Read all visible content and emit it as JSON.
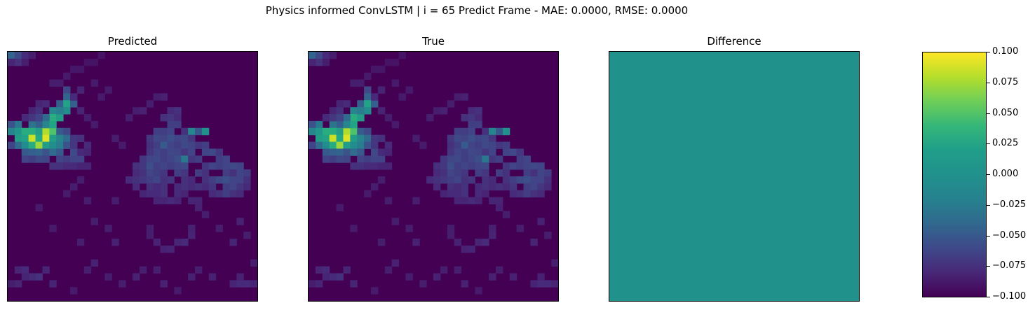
{
  "figure": {
    "title": "Physics informed ConvLSTM | i = 65 Predict Frame - MAE: 0.0000, RMSE: 0.0000"
  },
  "chart_data": [
    {
      "type": "heatmap",
      "title": "Predicted",
      "grid": [
        36,
        36
      ],
      "colormap": "viridis",
      "xticks": [],
      "yticks": [],
      "vmin": 0.0,
      "vmax": 1.0,
      "cells": [
        [
          0,
          0,
          0.32
        ],
        [
          1,
          0,
          0.22
        ],
        [
          2,
          0,
          0.12
        ],
        [
          1,
          1,
          0.14
        ],
        [
          0,
          1,
          0.1
        ],
        [
          3,
          0,
          0.08
        ],
        [
          2,
          1,
          0.08
        ],
        [
          6,
          4,
          0.08
        ],
        [
          7,
          4,
          0.08
        ],
        [
          8,
          3,
          0.07
        ],
        [
          9,
          2,
          0.06
        ],
        [
          10,
          2,
          0.06
        ],
        [
          11,
          1,
          0.05
        ],
        [
          12,
          1,
          0.05
        ],
        [
          13,
          0,
          0.05
        ],
        [
          8,
          5,
          0.22
        ],
        [
          8,
          6,
          0.32
        ],
        [
          7,
          7,
          0.3
        ],
        [
          6,
          8,
          0.45
        ],
        [
          6,
          9,
          0.62
        ],
        [
          7,
          9,
          0.55
        ],
        [
          8,
          7,
          0.58
        ],
        [
          8,
          8,
          0.48
        ],
        [
          7,
          8,
          0.42
        ],
        [
          9,
          7,
          0.3
        ],
        [
          5,
          9,
          0.35
        ],
        [
          4,
          10,
          0.3
        ],
        [
          3,
          10,
          0.38
        ],
        [
          1,
          10,
          0.4
        ],
        [
          0,
          10,
          0.25
        ],
        [
          0,
          11,
          0.45
        ],
        [
          1,
          11,
          0.52
        ],
        [
          2,
          11,
          0.62
        ],
        [
          3,
          11,
          0.62
        ],
        [
          4,
          11,
          0.55
        ],
        [
          5,
          11,
          0.88
        ],
        [
          6,
          11,
          0.72
        ],
        [
          7,
          11,
          0.28
        ],
        [
          8,
          11,
          0.22
        ],
        [
          5,
          10,
          0.45
        ],
        [
          6,
          10,
          0.58
        ],
        [
          1,
          12,
          0.55
        ],
        [
          2,
          12,
          0.58
        ],
        [
          3,
          12,
          0.92
        ],
        [
          4,
          12,
          0.6
        ],
        [
          5,
          12,
          0.95
        ],
        [
          6,
          12,
          0.55
        ],
        [
          7,
          12,
          0.45
        ],
        [
          8,
          12,
          0.35
        ],
        [
          1,
          13,
          0.35
        ],
        [
          2,
          13,
          0.48
        ],
        [
          3,
          13,
          0.62
        ],
        [
          4,
          13,
          0.85
        ],
        [
          5,
          13,
          0.55
        ],
        [
          6,
          13,
          0.48
        ],
        [
          7,
          13,
          0.42
        ],
        [
          8,
          13,
          0.25
        ],
        [
          0,
          13,
          0.2
        ],
        [
          2,
          14,
          0.28
        ],
        [
          3,
          14,
          0.3
        ],
        [
          4,
          14,
          0.32
        ],
        [
          5,
          14,
          0.25
        ],
        [
          6,
          14,
          0.35
        ],
        [
          7,
          14,
          0.28
        ],
        [
          9,
          14,
          0.22
        ],
        [
          2,
          15,
          0.2
        ],
        [
          3,
          15,
          0.18
        ],
        [
          4,
          15,
          0.22
        ],
        [
          5,
          15,
          0.2
        ],
        [
          7,
          15,
          0.2
        ],
        [
          8,
          15,
          0.18
        ],
        [
          9,
          15,
          0.2
        ],
        [
          10,
          15,
          0.2
        ],
        [
          6,
          16,
          0.14
        ],
        [
          7,
          16,
          0.14
        ],
        [
          8,
          16,
          0.12
        ],
        [
          9,
          16,
          0.12
        ],
        [
          10,
          16,
          0.1
        ],
        [
          11,
          16,
          0.1
        ],
        [
          9,
          12,
          0.16
        ],
        [
          10,
          12,
          0.14
        ],
        [
          9,
          13,
          0.16
        ],
        [
          11,
          13,
          0.12
        ],
        [
          10,
          14,
          0.12
        ],
        [
          11,
          14,
          0.1
        ],
        [
          4,
          7,
          0.1
        ],
        [
          5,
          7,
          0.12
        ],
        [
          3,
          8,
          0.1
        ],
        [
          4,
          8,
          0.14
        ],
        [
          2,
          9,
          0.12
        ],
        [
          3,
          9,
          0.16
        ],
        [
          4,
          9,
          0.2
        ],
        [
          10,
          5,
          0.1
        ],
        [
          9,
          6,
          0.12
        ],
        [
          10,
          8,
          0.1
        ],
        [
          23,
          8,
          0.12
        ],
        [
          24,
          8,
          0.14
        ],
        [
          22,
          9,
          0.14
        ],
        [
          23,
          9,
          0.16
        ],
        [
          24,
          9,
          0.12
        ],
        [
          23,
          10,
          0.18
        ],
        [
          24,
          10,
          0.18
        ],
        [
          21,
          11,
          0.18
        ],
        [
          22,
          11,
          0.18
        ],
        [
          23,
          11,
          0.2
        ],
        [
          25,
          11,
          0.14
        ],
        [
          26,
          11,
          0.45
        ],
        [
          27,
          11,
          0.28
        ],
        [
          28,
          11,
          0.5
        ],
        [
          20,
          12,
          0.16
        ],
        [
          21,
          12,
          0.22
        ],
        [
          22,
          12,
          0.2
        ],
        [
          23,
          12,
          0.24
        ],
        [
          24,
          12,
          0.2
        ],
        [
          25,
          12,
          0.22
        ],
        [
          26,
          12,
          0.16
        ],
        [
          20,
          13,
          0.14
        ],
        [
          21,
          13,
          0.18
        ],
        [
          22,
          13,
          0.28
        ],
        [
          23,
          13,
          0.2
        ],
        [
          24,
          13,
          0.18
        ],
        [
          25,
          13,
          0.22
        ],
        [
          26,
          13,
          0.2
        ],
        [
          27,
          13,
          0.16
        ],
        [
          28,
          13,
          0.18
        ],
        [
          20,
          14,
          0.16
        ],
        [
          21,
          14,
          0.2
        ],
        [
          22,
          14,
          0.18
        ],
        [
          23,
          14,
          0.22
        ],
        [
          24,
          14,
          0.2
        ],
        [
          25,
          14,
          0.16
        ],
        [
          26,
          14,
          0.2
        ],
        [
          28,
          14,
          0.2
        ],
        [
          29,
          14,
          0.22
        ],
        [
          30,
          14,
          0.16
        ],
        [
          19,
          15,
          0.16
        ],
        [
          20,
          15,
          0.2
        ],
        [
          21,
          15,
          0.22
        ],
        [
          22,
          15,
          0.18
        ],
        [
          23,
          15,
          0.2
        ],
        [
          24,
          15,
          0.24
        ],
        [
          25,
          15,
          0.4
        ],
        [
          26,
          15,
          0.16
        ],
        [
          27,
          15,
          0.18
        ],
        [
          30,
          15,
          0.18
        ],
        [
          31,
          15,
          0.2
        ],
        [
          18,
          16,
          0.14
        ],
        [
          19,
          16,
          0.16
        ],
        [
          20,
          16,
          0.24
        ],
        [
          21,
          16,
          0.18
        ],
        [
          22,
          16,
          0.2
        ],
        [
          23,
          16,
          0.18
        ],
        [
          24,
          16,
          0.2
        ],
        [
          25,
          16,
          0.22
        ],
        [
          28,
          16,
          0.16
        ],
        [
          29,
          16,
          0.2
        ],
        [
          30,
          16,
          0.18
        ],
        [
          31,
          16,
          0.2
        ],
        [
          32,
          16,
          0.22
        ],
        [
          33,
          16,
          0.2
        ],
        [
          18,
          17,
          0.12
        ],
        [
          19,
          17,
          0.14
        ],
        [
          20,
          17,
          0.2
        ],
        [
          21,
          17,
          0.18
        ],
        [
          22,
          17,
          0.16
        ],
        [
          24,
          17,
          0.18
        ],
        [
          25,
          17,
          0.16
        ],
        [
          27,
          17,
          0.18
        ],
        [
          28,
          17,
          0.14
        ],
        [
          31,
          17,
          0.18
        ],
        [
          32,
          17,
          0.14
        ],
        [
          33,
          17,
          0.2
        ],
        [
          34,
          17,
          0.18
        ],
        [
          17,
          18,
          0.12
        ],
        [
          18,
          18,
          0.14
        ],
        [
          19,
          18,
          0.16
        ],
        [
          20,
          18,
          0.18
        ],
        [
          21,
          18,
          0.2
        ],
        [
          22,
          18,
          0.14
        ],
        [
          23,
          18,
          0.16
        ],
        [
          25,
          18,
          0.14
        ],
        [
          26,
          18,
          0.12
        ],
        [
          28,
          18,
          0.14
        ],
        [
          29,
          18,
          0.18
        ],
        [
          30,
          18,
          0.22
        ],
        [
          31,
          18,
          0.24
        ],
        [
          32,
          18,
          0.2
        ],
        [
          33,
          18,
          0.2
        ],
        [
          34,
          18,
          0.14
        ],
        [
          18,
          19,
          0.12
        ],
        [
          20,
          19,
          0.14
        ],
        [
          21,
          19,
          0.12
        ],
        [
          22,
          19,
          0.14
        ],
        [
          24,
          19,
          0.12
        ],
        [
          25,
          19,
          0.14
        ],
        [
          26,
          19,
          0.12
        ],
        [
          27,
          19,
          0.14
        ],
        [
          28,
          19,
          0.12
        ],
        [
          29,
          19,
          0.16
        ],
        [
          31,
          19,
          0.18
        ],
        [
          32,
          19,
          0.2
        ],
        [
          33,
          19,
          0.16
        ],
        [
          34,
          19,
          0.12
        ],
        [
          19,
          20,
          0.1
        ],
        [
          20,
          20,
          0.12
        ],
        [
          21,
          20,
          0.12
        ],
        [
          22,
          20,
          0.14
        ],
        [
          24,
          20,
          0.12
        ],
        [
          25,
          20,
          0.1
        ],
        [
          29,
          20,
          0.12
        ],
        [
          30,
          20,
          0.14
        ],
        [
          31,
          20,
          0.18
        ],
        [
          32,
          20,
          0.14
        ],
        [
          33,
          20,
          0.12
        ],
        [
          15,
          21,
          0.08
        ],
        [
          21,
          21,
          0.1
        ],
        [
          22,
          21,
          0.1
        ],
        [
          23,
          21,
          0.12
        ],
        [
          24,
          21,
          0.1
        ],
        [
          26,
          21,
          0.1
        ],
        [
          27,
          21,
          0.1
        ],
        [
          17,
          9,
          0.08
        ],
        [
          18,
          8,
          0.08
        ],
        [
          19,
          8,
          0.09
        ],
        [
          20,
          7,
          0.08
        ],
        [
          21,
          6,
          0.08
        ],
        [
          22,
          6,
          0.09
        ],
        [
          12,
          4,
          0.07
        ],
        [
          13,
          6,
          0.07
        ],
        [
          14,
          5,
          0.07
        ],
        [
          11,
          9,
          0.08
        ],
        [
          12,
          10,
          0.07
        ],
        [
          15,
          12,
          0.08
        ],
        [
          16,
          13,
          0.07
        ],
        [
          10,
          18,
          0.08
        ],
        [
          8,
          20,
          0.07
        ],
        [
          9,
          19,
          0.08
        ],
        [
          11,
          21,
          0.08
        ],
        [
          27,
          22,
          0.09
        ],
        [
          28,
          23,
          0.08
        ],
        [
          26,
          25,
          0.09
        ],
        [
          12,
          24,
          0.08
        ],
        [
          14,
          25,
          0.08
        ],
        [
          30,
          25,
          0.08
        ],
        [
          33,
          24,
          0.09
        ],
        [
          4,
          22,
          0.07
        ],
        [
          6,
          25,
          0.07
        ],
        [
          24,
          27,
          0.1
        ],
        [
          25,
          27,
          0.12
        ],
        [
          26,
          26,
          0.1
        ],
        [
          22,
          28,
          0.09
        ],
        [
          23,
          28,
          0.1
        ],
        [
          20,
          26,
          0.08
        ],
        [
          21,
          27,
          0.09
        ],
        [
          10,
          27,
          0.08
        ],
        [
          15,
          27,
          0.09
        ],
        [
          32,
          27,
          0.1
        ],
        [
          34,
          26,
          0.08
        ],
        [
          20,
          25,
          0.08
        ],
        [
          1,
          31,
          0.1
        ],
        [
          2,
          31,
          0.12
        ],
        [
          3,
          32,
          0.12
        ],
        [
          4,
          32,
          0.14
        ],
        [
          2,
          32,
          0.1
        ],
        [
          5,
          31,
          0.1
        ],
        [
          6,
          33,
          0.1
        ],
        [
          0,
          33,
          0.08
        ],
        [
          1,
          33,
          0.1
        ],
        [
          11,
          31,
          0.08
        ],
        [
          12,
          30,
          0.09
        ],
        [
          14,
          32,
          0.08
        ],
        [
          16,
          33,
          0.08
        ],
        [
          18,
          32,
          0.09
        ],
        [
          19,
          31,
          0.08
        ],
        [
          21,
          31,
          0.08
        ],
        [
          22,
          33,
          0.09
        ],
        [
          26,
          32,
          0.09
        ],
        [
          27,
          31,
          0.08
        ],
        [
          29,
          32,
          0.09
        ],
        [
          32,
          33,
          0.1
        ],
        [
          33,
          33,
          0.12
        ],
        [
          34,
          33,
          0.12
        ],
        [
          35,
          33,
          0.1
        ],
        [
          33,
          32,
          0.09
        ],
        [
          35,
          30,
          0.08
        ],
        [
          9,
          34,
          0.07
        ],
        [
          24,
          34,
          0.07
        ]
      ]
    },
    {
      "type": "heatmap",
      "title": "True",
      "grid": [
        36,
        36
      ],
      "colormap": "viridis",
      "xticks": [],
      "yticks": [],
      "same_cells_as": "Predicted"
    },
    {
      "type": "heatmap",
      "title": "Difference",
      "grid": [
        36,
        36
      ],
      "colormap": "viridis",
      "xticks": [],
      "yticks": [],
      "uniform_value": 0.0,
      "vmin": -0.1,
      "vmax": 0.1
    }
  ],
  "colorbar": {
    "colormap": "viridis",
    "range": [
      -0.1,
      0.1
    ],
    "tick_values": [
      0.1,
      0.075,
      0.05,
      0.025,
      0.0,
      -0.025,
      -0.05,
      -0.075,
      -0.1
    ],
    "tick_labels": [
      "0.100",
      "0.075",
      "0.050",
      "0.025",
      "0.000",
      "−0.025",
      "−0.050",
      "−0.075",
      "−0.100"
    ]
  },
  "colors": {
    "viridis_low": "#440154",
    "viridis_mid": "#21918c",
    "viridis_high": "#fde725"
  }
}
